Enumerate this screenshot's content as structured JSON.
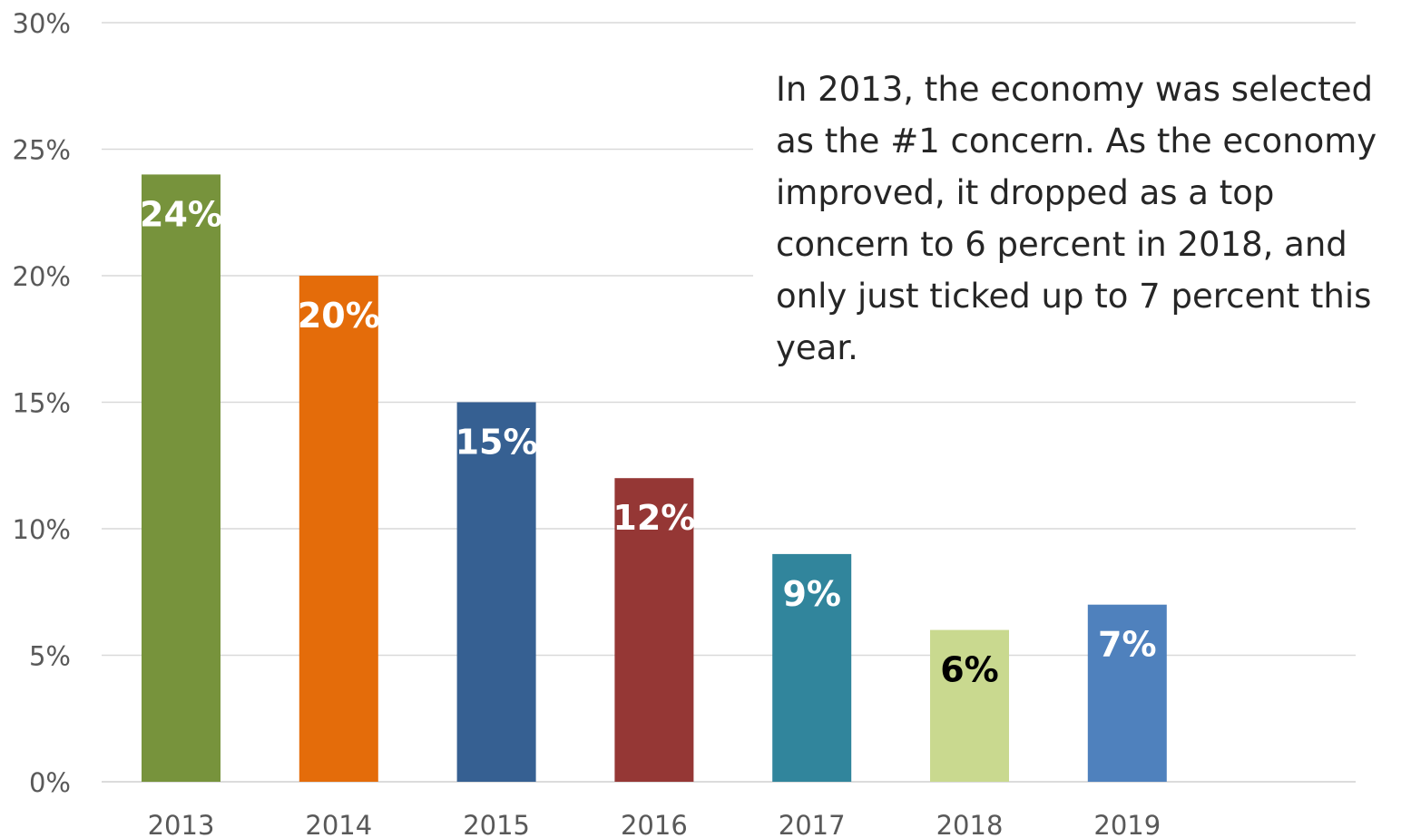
{
  "chart_data": {
    "type": "bar",
    "categories": [
      "2013",
      "2014",
      "2015",
      "2016",
      "2017",
      "2018",
      "2019"
    ],
    "values": [
      24,
      20,
      15,
      12,
      9,
      6,
      7
    ],
    "data_labels": [
      "24%",
      "20%",
      "15%",
      "12%",
      "9%",
      "6%",
      "7%"
    ],
    "bar_colors": [
      "#77933c",
      "#e46c0a",
      "#366092",
      "#953735",
      "#31859c",
      "#c9d98f",
      "#4f81bd"
    ],
    "label_colors": [
      "#ffffff",
      "#ffffff",
      "#ffffff",
      "#ffffff",
      "#ffffff",
      "#000000",
      "#ffffff"
    ],
    "ylim": [
      0,
      30
    ],
    "yticks": [
      0,
      5,
      10,
      15,
      20,
      25,
      30
    ],
    "ytick_labels": [
      "0%",
      "5%",
      "10%",
      "15%",
      "20%",
      "25%",
      "30%"
    ],
    "grid": true,
    "title": "",
    "xlabel": "",
    "ylabel": ""
  },
  "annotation": {
    "lines": [
      "In 2013, the economy was selected",
      "as the #1 concern. As the economy",
      "improved, it dropped as a top",
      "concern to 6 percent in 2018, and",
      "only just ticked up to 7 percent this",
      "year."
    ]
  }
}
